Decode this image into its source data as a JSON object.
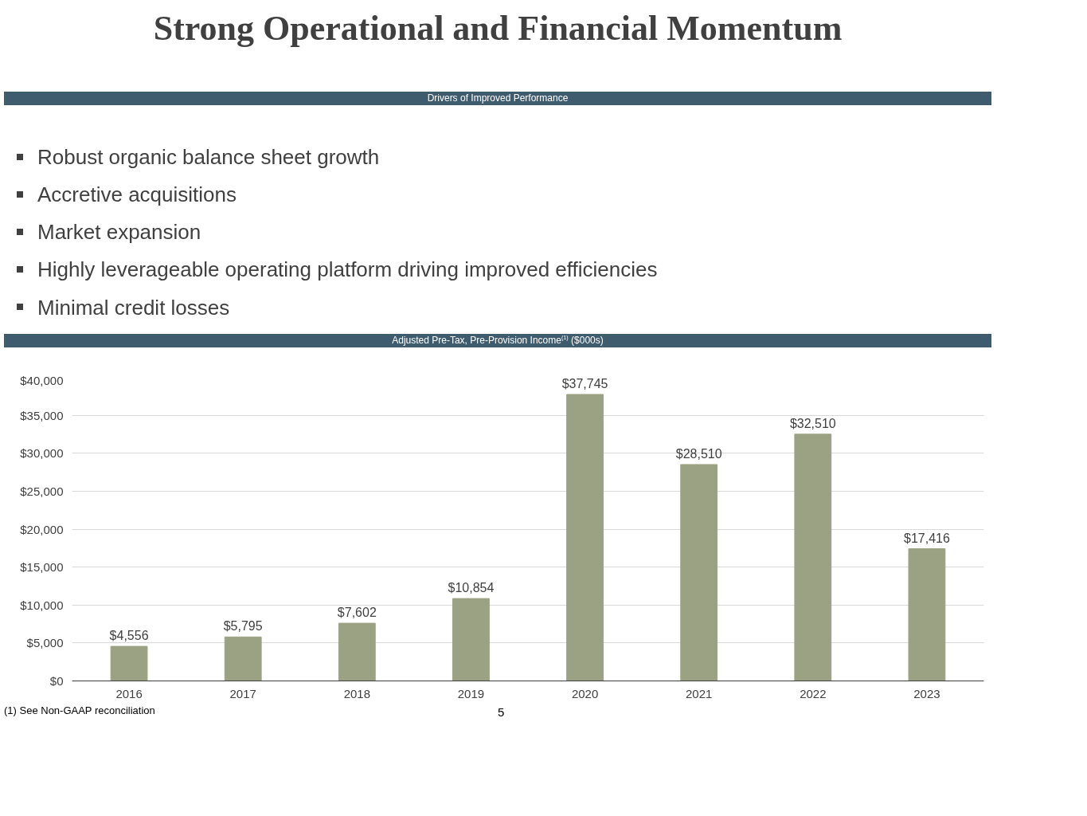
{
  "chart_data": {
    "type": "bar",
    "title": "Strong Operational and Financial Momentum",
    "subtitle": "Adjusted Pre-Tax, Pre-Provision Income$^{(1)}$ ($000s)",
    "annotations": [
      "Drivers of Improved Performance",
      "Robust organic balance sheet growth",
      "Accretive acquisitions",
      "Market expansion",
      "Highly leverageable operating platform driving improved efficiencies",
      "Minimal credit losses",
      "(1)  See Non-GAAP reconciliation",
      "5"
    ],
    "categories": [
      "2016",
      "2017",
      "2018",
      "2019",
      "2020",
      "2021",
      "2022",
      "2023"
    ],
    "values": [
      4556,
      5795,
      7602,
      10854,
      37745,
      28510,
      32510,
      17416
    ],
    "value_labels": [
      "$4,556",
      "$5,795",
      "$7,602",
      "$10,854",
      "$37,745",
      "$28,510",
      "$32,510",
      "$17,416"
    ],
    "color": "#9ba283",
    "ylim": [
      0,
      40000
    ],
    "yticks": [
      {
        "value": 0,
        "label": "$0"
      },
      {
        "value": 5000,
        "label": "$5,000"
      },
      {
        "value": 10000,
        "label": "$10,000"
      },
      {
        "value": 15000,
        "label": "$15,000"
      },
      {
        "value": 20000,
        "label": "$20,000"
      },
      {
        "value": 25000,
        "label": "$25,000"
      },
      {
        "value": 30000,
        "label": "$30,000"
      },
      {
        "value": 35000,
        "label": "$35,000"
      },
      {
        "value": 40000,
        "label": "$40,000"
      }
    ],
    "grid": "y"
  }
}
